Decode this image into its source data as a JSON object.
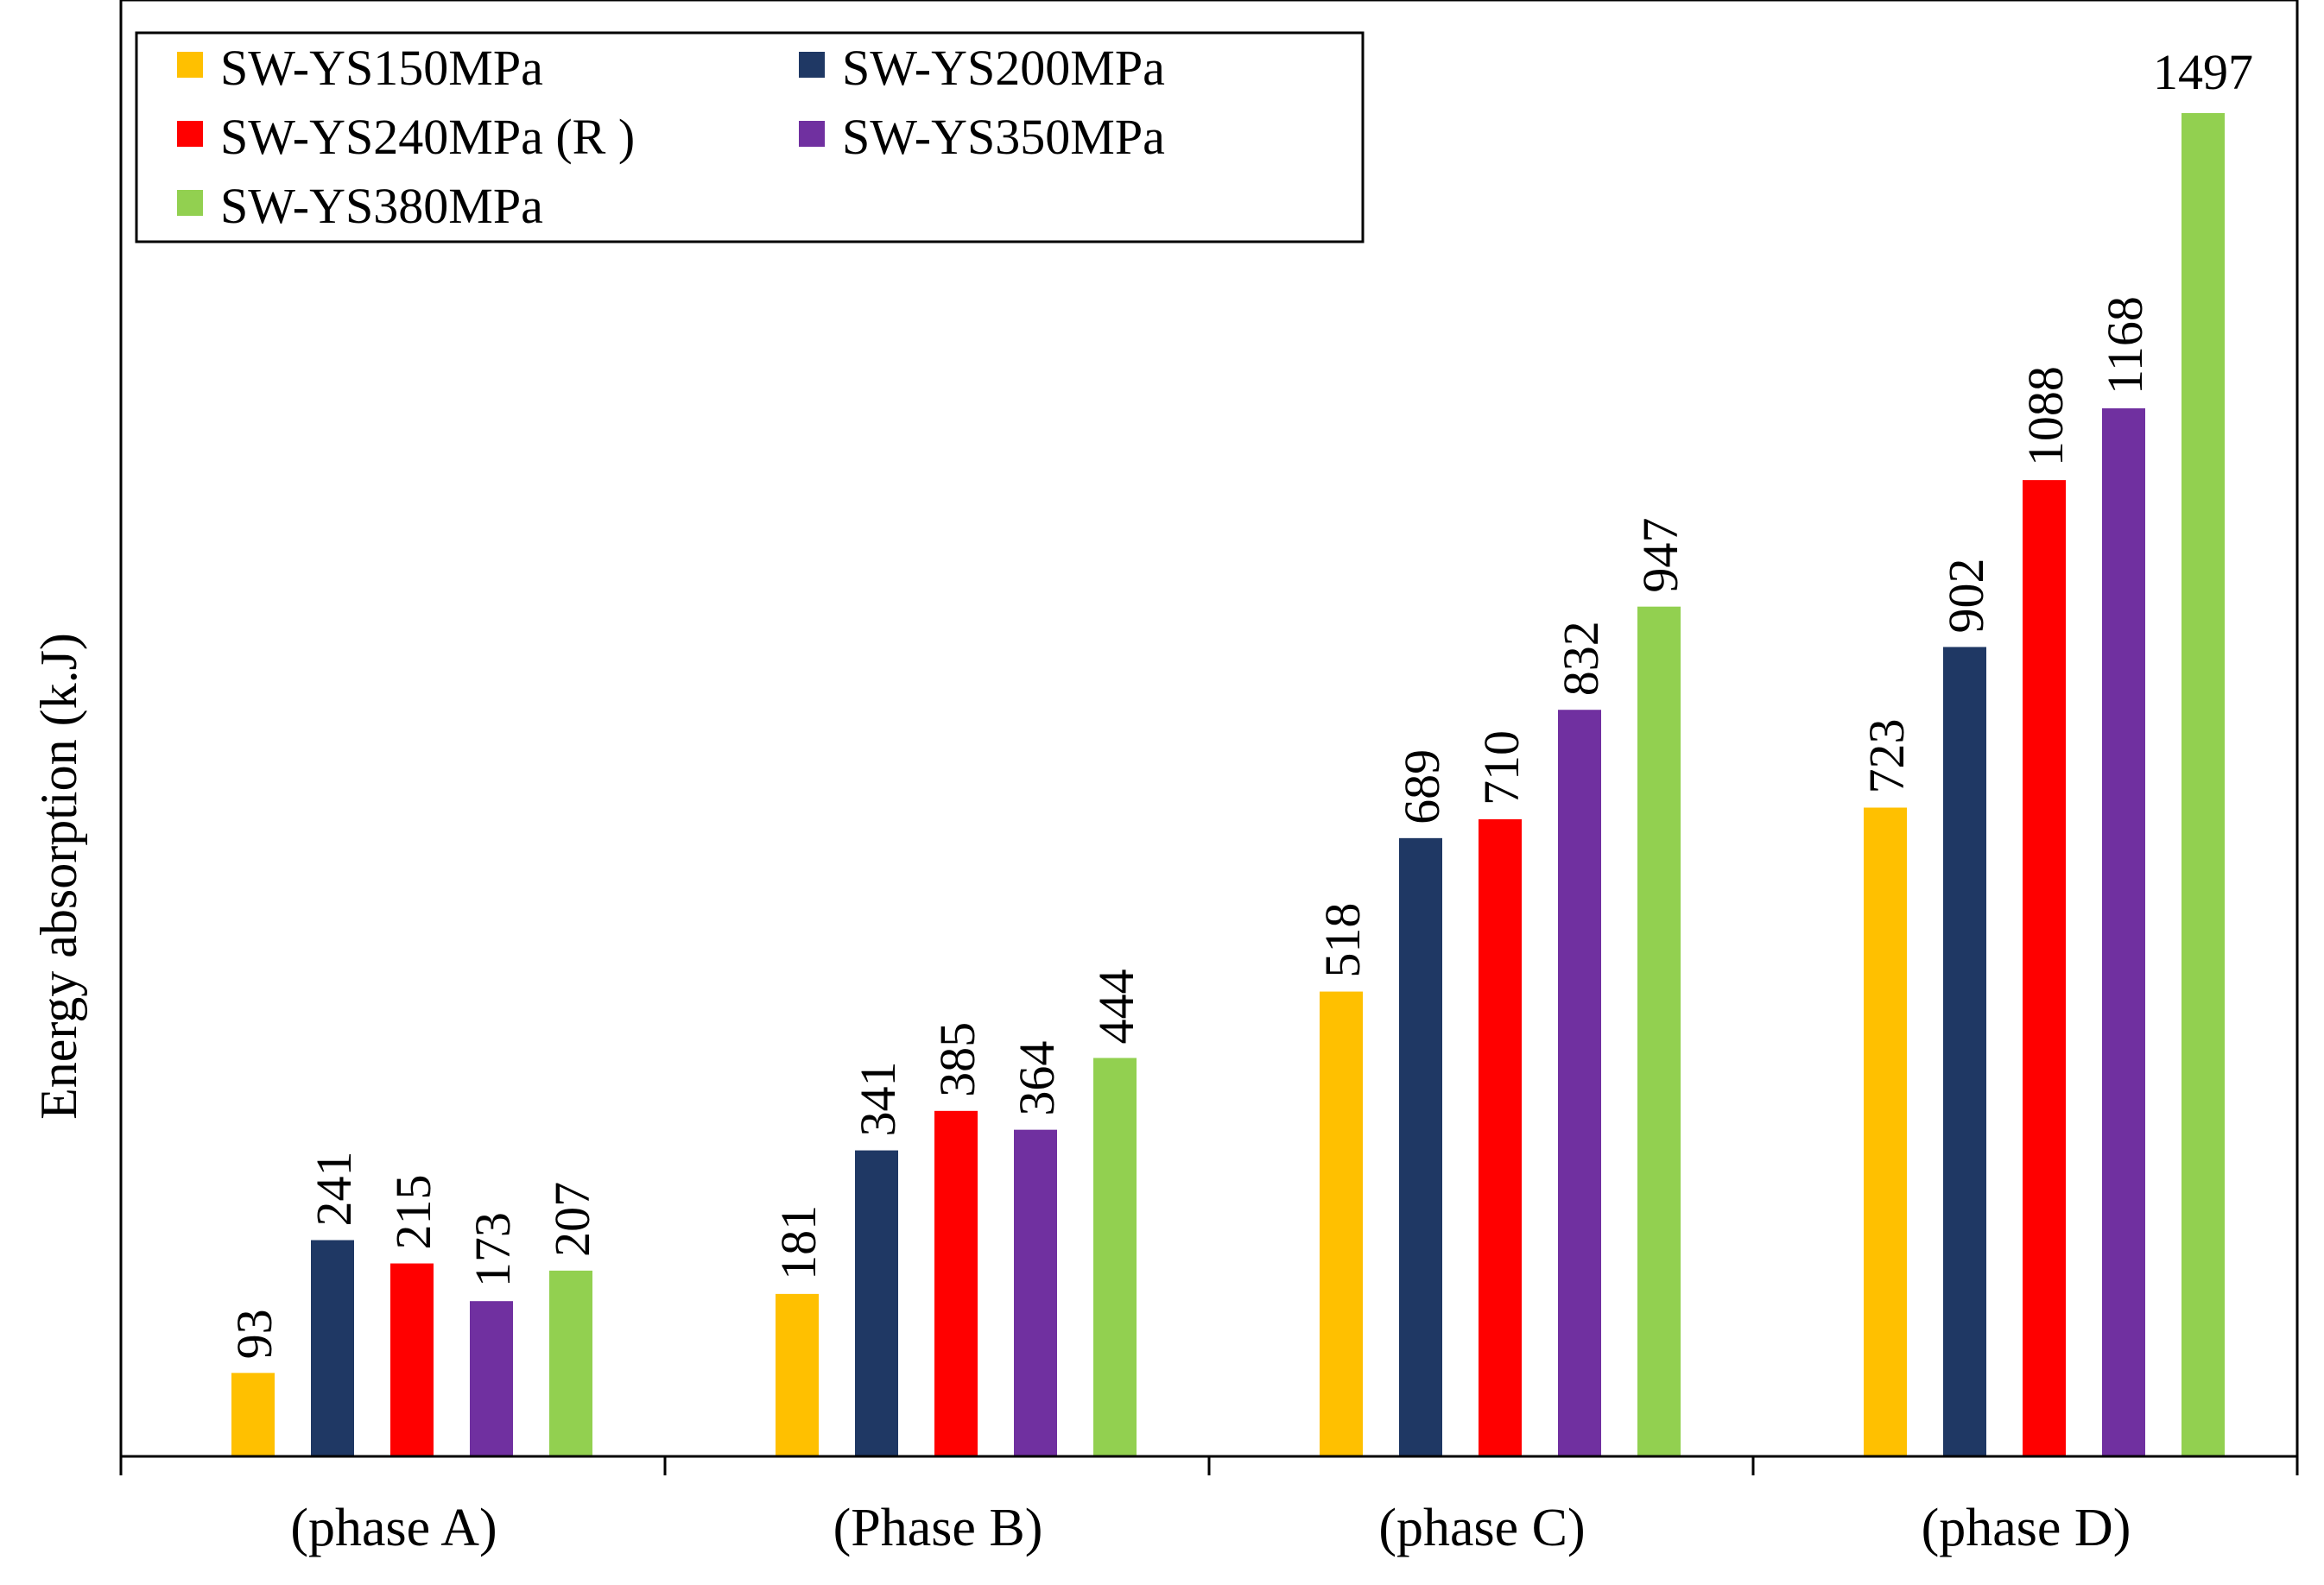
{
  "chart_data": {
    "type": "bar",
    "title": "",
    "xlabel": "",
    "ylabel": "Energy absorption (k.J)",
    "ylim": [
      0,
      1600
    ],
    "grid": false,
    "legend_position": "top-left",
    "categories": [
      "(phase A)",
      "(Phase B)",
      "(phase C)",
      "(phase D)"
    ],
    "series": [
      {
        "name": "SW-YS150MPa",
        "color": "#FFC000",
        "values": [
          93,
          181,
          518,
          723
        ]
      },
      {
        "name": "SW-YS200MPa",
        "color": "#1F3864",
        "values": [
          241,
          341,
          689,
          902
        ]
      },
      {
        "name": "SW-YS240MPa (R )",
        "color": "#FF0000",
        "values": [
          215,
          385,
          710,
          1088
        ]
      },
      {
        "name": "SW-YS350MPa",
        "color": "#7030A0",
        "values": [
          173,
          364,
          832,
          1168
        ]
      },
      {
        "name": "SW-YS380MPa",
        "color": "#92D050",
        "values": [
          207,
          444,
          947,
          1497
        ]
      }
    ]
  }
}
